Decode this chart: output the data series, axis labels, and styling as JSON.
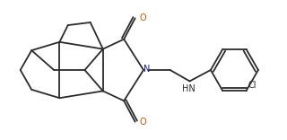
{
  "bg_color": "#ffffff",
  "line_color": "#2b2b2b",
  "N_color": "#1a1a8c",
  "O_color": "#cc5500",
  "Cl_color": "#2b2b2b",
  "lw": 1.3,
  "fs": 7.0,
  "xlim": [
    0,
    10
  ],
  "ylim": [
    0,
    5
  ]
}
